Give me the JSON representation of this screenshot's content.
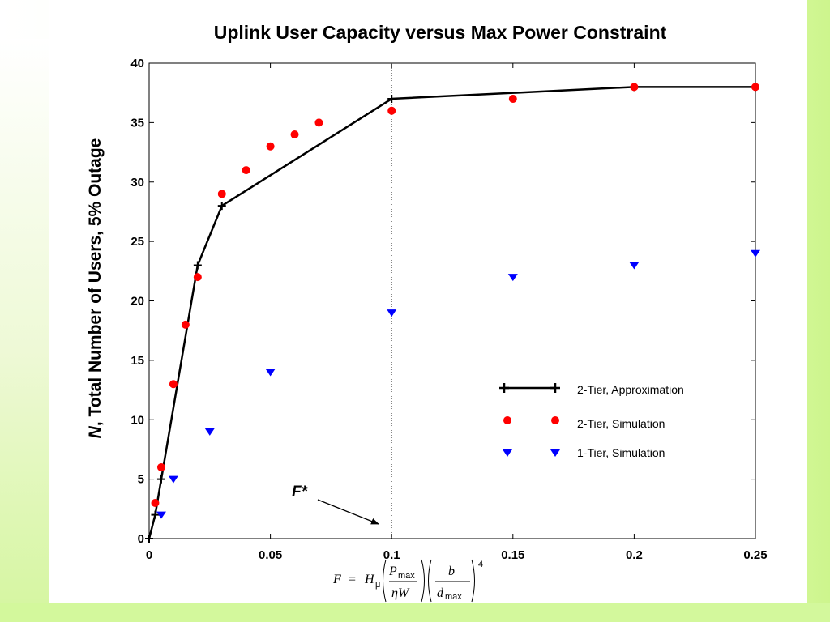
{
  "chart_data": {
    "type": "line",
    "title": "Uplink User Capacity versus Max Power Constraint",
    "ylabel": "Total Number of Users, 5% Outage",
    "ylabel_prefix": "N",
    "xlabel_formula": {
      "lhs": "F",
      "eq": "=",
      "H": "H",
      "mu": "μ",
      "P": "P",
      "max": "max",
      "eta_W": "ηW",
      "b": "b",
      "d": "d",
      "power": "4"
    },
    "xlim": [
      0,
      0.25
    ],
    "ylim": [
      0,
      40
    ],
    "xticks": [
      0,
      0.05,
      0.1,
      0.15,
      0.2,
      0.25
    ],
    "xtick_labels": [
      "0",
      "0.05",
      "0.1",
      "0.15",
      "0.2",
      "0.25"
    ],
    "yticks": [
      0,
      5,
      10,
      15,
      20,
      25,
      30,
      35,
      40
    ],
    "ytick_labels": [
      "0",
      "5",
      "10",
      "15",
      "20",
      "25",
      "30",
      "35",
      "40"
    ],
    "grid": false,
    "legend_position": "right",
    "series": [
      {
        "name": "2-Tier, Approximation",
        "style": "line-plus",
        "color": "#000000",
        "x": [
          0,
          0.0025,
          0.005,
          0.02,
          0.03,
          0.1,
          0.2,
          0.25
        ],
        "y": [
          0,
          2,
          5,
          23,
          28,
          37,
          38,
          38
        ]
      },
      {
        "name": "2-Tier, Simulation",
        "style": "circle",
        "color": "#ff0000",
        "x": [
          0.0025,
          0.005,
          0.01,
          0.015,
          0.02,
          0.03,
          0.04,
          0.05,
          0.06,
          0.07,
          0.1,
          0.15,
          0.2,
          0.25
        ],
        "y": [
          3,
          6,
          13,
          18,
          22,
          29,
          31,
          33,
          34,
          35,
          36,
          37,
          38,
          38
        ]
      },
      {
        "name": "1-Tier, Simulation",
        "style": "triangle-down",
        "color": "#0000ff",
        "x": [
          0.005,
          0.01,
          0.025,
          0.05,
          0.1,
          0.15,
          0.2,
          0.25
        ],
        "y": [
          2,
          5,
          9,
          14,
          19,
          22,
          23,
          24
        ]
      }
    ],
    "reference_line": {
      "x": 0.1
    },
    "annotation": {
      "text": "F*",
      "points_to": [
        0.095,
        1
      ]
    }
  }
}
